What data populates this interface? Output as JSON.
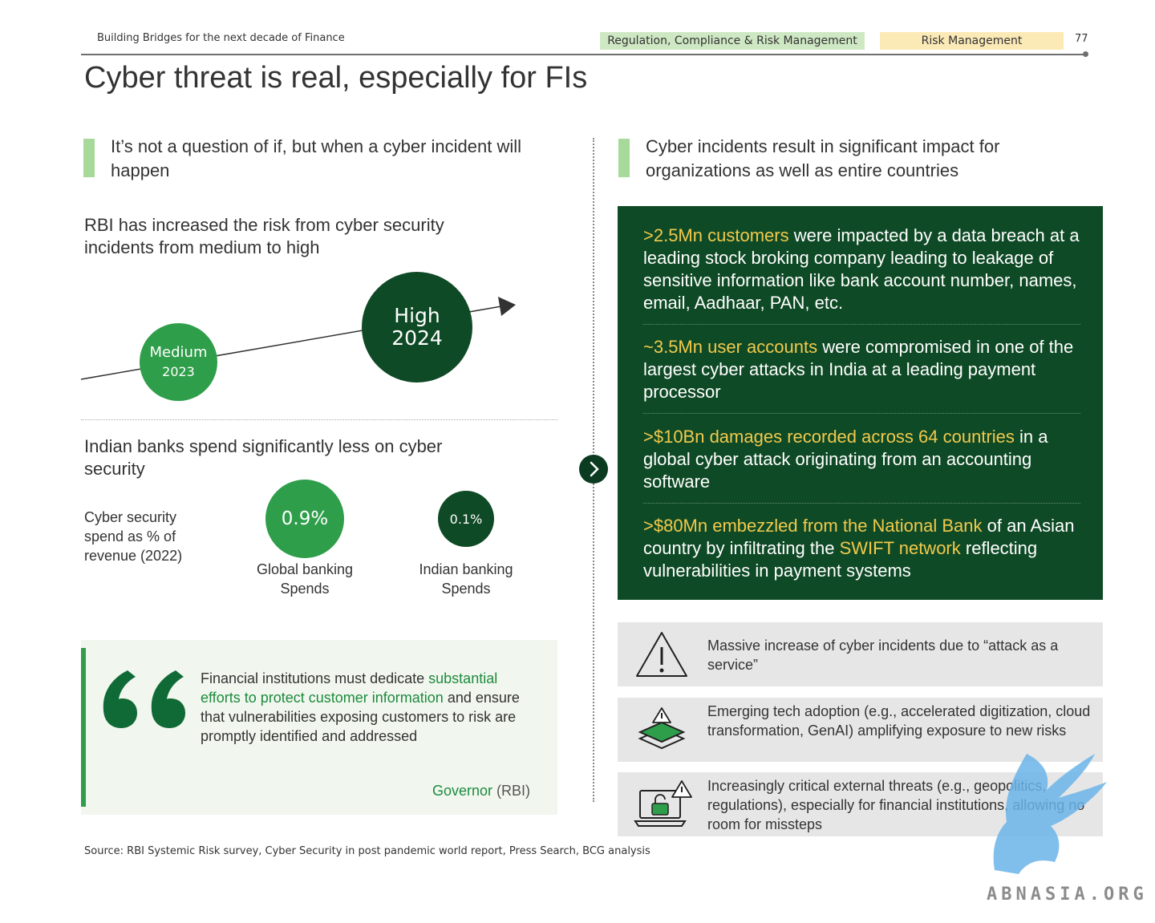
{
  "header": {
    "report_title": "Building Bridges for the next decade of Finance",
    "tag_primary": "Regulation, Compliance & Risk Management",
    "tag_secondary": "Risk Management",
    "page_number": "77"
  },
  "page_title": "Cyber threat is real, especially for FIs",
  "left": {
    "heading": "It’s not a question of if, but when a cyber incident will happen",
    "rbi": {
      "heading": "RBI has increased the risk from cyber security incidents from medium to high",
      "medium_label": "Medium",
      "medium_year": "2023",
      "high_label": "High",
      "high_year": "2024"
    },
    "spend": {
      "heading": "Indian banks spend significantly less on cyber security",
      "caption": "Cyber security spend as % of revenue (2022)",
      "global_value": "0.9%",
      "global_label": "Global banking Spends",
      "indian_value": "0.1%",
      "indian_label": "Indian banking Spends"
    },
    "quote": {
      "text_1": "Financial institutions must dedicate ",
      "text_highlight": "substantial efforts to protect customer information",
      "text_2": " and ensure that vulnerabilities exposing customers to risk are promptly identified and addressed",
      "author": "Governor",
      "author_org": "(RBI)"
    }
  },
  "right": {
    "heading": "Cyber incidents result in significant impact for organizations as well as entire countries",
    "stats": [
      {
        "hl1": ">2.5Mn customers",
        "t1": " were impacted by a data breach at a leading stock broking company leading to leakage of sensitive information like bank account number, names, email, Aadhaar, PAN, etc.",
        "hl2": "",
        "t2": ""
      },
      {
        "hl1": "~3.5Mn user accounts",
        "t1": " were compromised in one of the largest cyber attacks in India at a leading payment processor",
        "hl2": "",
        "t2": ""
      },
      {
        "hl1": ">$10Bn damages recorded across 64 countries",
        "t1": " in a global cyber attack originating from an accounting software",
        "hl2": "",
        "t2": ""
      },
      {
        "hl1": ">$80Mn embezzled from the National Bank",
        "t1": " of an Asian country by infiltrating the ",
        "hl2": "SWIFT network",
        "t2": " reflecting vulnerabilities in payment systems"
      }
    ],
    "risks": [
      {
        "icon": "warning-triangle-icon",
        "text": "Massive increase of cyber incidents due to “attack as a service”"
      },
      {
        "icon": "layers-warning-icon",
        "text": "Emerging tech adoption (e.g., accelerated digitization, cloud transformation, GenAI) amplifying exposure to new risks"
      },
      {
        "icon": "laptop-lock-icon",
        "text": "Increasingly critical external threats (e.g., geopolitics, regulations), especially for financial institutions, allowing no room for missteps"
      }
    ]
  },
  "source": "Source: RBI Systemic Risk survey, Cyber Security in post pandemic world report, Press Search, BCG analysis",
  "watermark": "ABNASIA.ORG",
  "colors": {
    "dark_green": "#0f4a26",
    "mid_green": "#2f9e4a",
    "light_green": "#a7d99b",
    "highlight": "#f2c94c",
    "watermark_blue": "#6ab4e8"
  }
}
